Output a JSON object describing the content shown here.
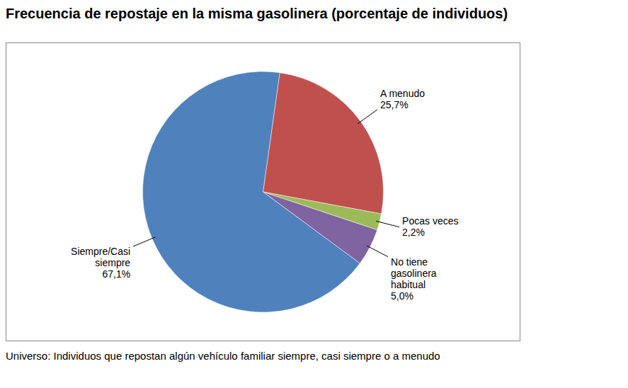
{
  "chart_data": {
    "type": "pie",
    "title": "Frecuencia de repostaje en la misma gasolinera (porcentaje de individuos)",
    "caption": "Universo: Individuos que repostan algún vehículo familiar siempre, casi siempre o a menudo",
    "categories": [
      "A menudo",
      "Pocas veces",
      "No tiene gasolinera habitual",
      "Siempre/Casi siempre"
    ],
    "values": [
      25.7,
      2.2,
      5.0,
      67.1
    ],
    "value_labels": [
      "25,7%",
      "2,2%",
      "5,0%",
      "67,1%"
    ],
    "colors": [
      "#c0504d",
      "#9bbb59",
      "#8064a2",
      "#4f81bd"
    ],
    "data_labels": true
  }
}
